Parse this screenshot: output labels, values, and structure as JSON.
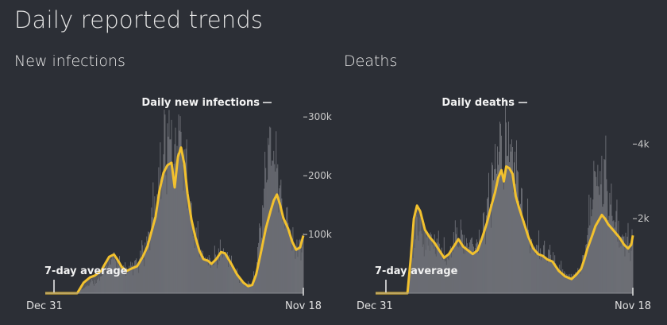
{
  "page": {
    "title": "Daily reported trends"
  },
  "colors": {
    "background": "#2c2f36",
    "bars": "#6f7178",
    "area": "#55575d",
    "average_line": "#f2c12e"
  },
  "chart_data": [
    {
      "type": "bar",
      "title": "New infections",
      "x_start_label": "Dec 31",
      "x_end_label": "Nov 18",
      "days": 323,
      "ylim": [
        0,
        330000
      ],
      "yticks": [
        {
          "value": 100000,
          "label": "100k"
        },
        {
          "value": 200000,
          "label": "200k"
        },
        {
          "value": 300000,
          "label": "300k"
        }
      ],
      "bar_series_label": "Daily new infections",
      "average_label": "7-day average",
      "average_keypoints": [
        [
          0,
          0
        ],
        [
          40,
          0
        ],
        [
          48,
          18000
        ],
        [
          56,
          27000
        ],
        [
          62,
          30000
        ],
        [
          70,
          38000
        ],
        [
          74,
          48000
        ],
        [
          80,
          62000
        ],
        [
          86,
          66000
        ],
        [
          90,
          58000
        ],
        [
          96,
          44000
        ],
        [
          102,
          38000
        ],
        [
          108,
          42000
        ],
        [
          115,
          46000
        ],
        [
          122,
          62000
        ],
        [
          128,
          80000
        ],
        [
          133,
          105000
        ],
        [
          138,
          130000
        ],
        [
          143,
          175000
        ],
        [
          148,
          205000
        ],
        [
          153,
          218000
        ],
        [
          158,
          222000
        ],
        [
          162,
          180000
        ],
        [
          166,
          232000
        ],
        [
          170,
          248000
        ],
        [
          174,
          220000
        ],
        [
          178,
          170000
        ],
        [
          183,
          125000
        ],
        [
          188,
          95000
        ],
        [
          193,
          72000
        ],
        [
          198,
          58000
        ],
        [
          204,
          55000
        ],
        [
          208,
          50000
        ],
        [
          214,
          58000
        ],
        [
          220,
          70000
        ],
        [
          225,
          68000
        ],
        [
          232,
          52000
        ],
        [
          240,
          32000
        ],
        [
          248,
          18000
        ],
        [
          254,
          12000
        ],
        [
          259,
          14000
        ],
        [
          264,
          32000
        ],
        [
          270,
          70000
        ],
        [
          276,
          110000
        ],
        [
          282,
          140000
        ],
        [
          286,
          158000
        ],
        [
          290,
          168000
        ],
        [
          294,
          150000
        ],
        [
          298,
          128000
        ],
        [
          304,
          110000
        ],
        [
          309,
          88000
        ],
        [
          314,
          74000
        ],
        [
          319,
          78000
        ],
        [
          323,
          98000
        ]
      ],
      "bar_scale_keypoints": [
        [
          0,
          0.2
        ],
        [
          110,
          1.05
        ],
        [
          150,
          1.25
        ],
        [
          165,
          1.2
        ],
        [
          180,
          1.1
        ],
        [
          240,
          1.0
        ],
        [
          262,
          1.2
        ],
        [
          270,
          1.75
        ],
        [
          278,
          2.0
        ],
        [
          286,
          1.55
        ],
        [
          300,
          1.1
        ],
        [
          323,
          1.0
        ]
      ]
    },
    {
      "type": "bar",
      "title": "Deaths",
      "x_start_label": "Dec 31",
      "x_end_label": "Nov 18",
      "days": 323,
      "ylim": [
        0,
        5200
      ],
      "yticks": [
        {
          "value": 2000,
          "label": "2k"
        },
        {
          "value": 4000,
          "label": "4k"
        }
      ],
      "bar_series_label": "Daily deaths",
      "average_label": "7-day average",
      "average_keypoints": [
        [
          0,
          0
        ],
        [
          40,
          0
        ],
        [
          44,
          900
        ],
        [
          48,
          2000
        ],
        [
          52,
          2350
        ],
        [
          56,
          2200
        ],
        [
          62,
          1700
        ],
        [
          68,
          1500
        ],
        [
          74,
          1350
        ],
        [
          80,
          1150
        ],
        [
          86,
          950
        ],
        [
          92,
          1050
        ],
        [
          98,
          1250
        ],
        [
          104,
          1450
        ],
        [
          110,
          1250
        ],
        [
          116,
          1150
        ],
        [
          122,
          1050
        ],
        [
          128,
          1150
        ],
        [
          134,
          1500
        ],
        [
          140,
          1900
        ],
        [
          146,
          2400
        ],
        [
          150,
          2700
        ],
        [
          154,
          3100
        ],
        [
          158,
          3300
        ],
        [
          161,
          3000
        ],
        [
          164,
          3400
        ],
        [
          168,
          3350
        ],
        [
          172,
          3200
        ],
        [
          176,
          2600
        ],
        [
          180,
          2300
        ],
        [
          186,
          1900
        ],
        [
          192,
          1500
        ],
        [
          198,
          1200
        ],
        [
          204,
          1050
        ],
        [
          210,
          1000
        ],
        [
          216,
          900
        ],
        [
          222,
          850
        ],
        [
          230,
          600
        ],
        [
          238,
          450
        ],
        [
          246,
          380
        ],
        [
          252,
          500
        ],
        [
          258,
          650
        ],
        [
          262,
          900
        ],
        [
          266,
          1200
        ],
        [
          272,
          1550
        ],
        [
          276,
          1800
        ],
        [
          280,
          1950
        ],
        [
          284,
          2100
        ],
        [
          288,
          2000
        ],
        [
          292,
          1850
        ],
        [
          296,
          1750
        ],
        [
          300,
          1650
        ],
        [
          306,
          1500
        ],
        [
          312,
          1300
        ],
        [
          317,
          1200
        ],
        [
          321,
          1300
        ],
        [
          323,
          1550
        ]
      ],
      "bar_scale_keypoints": [
        [
          0,
          0.2
        ],
        [
          80,
          1.05
        ],
        [
          150,
          1.25
        ],
        [
          170,
          1.2
        ],
        [
          200,
          1.1
        ],
        [
          262,
          1.2
        ],
        [
          276,
          1.9
        ],
        [
          284,
          1.6
        ],
        [
          300,
          1.2
        ],
        [
          323,
          1.0
        ]
      ]
    }
  ]
}
